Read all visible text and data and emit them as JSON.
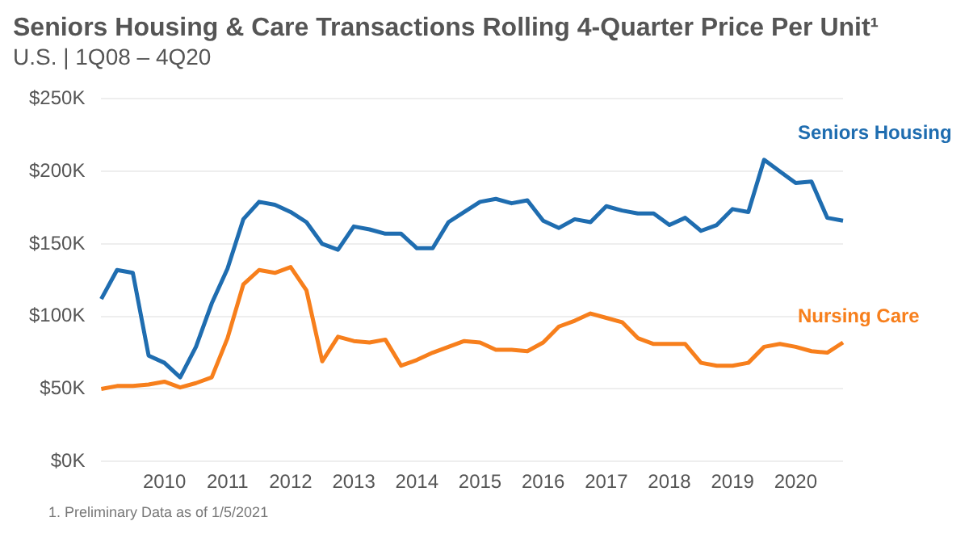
{
  "chart_data": {
    "type": "line",
    "title": "Seniors Housing & Care Transactions Rolling 4-Quarter Price Per Unit¹",
    "subtitle": "U.S. | 1Q08 – 4Q20",
    "categories": [
      null,
      null,
      null,
      null,
      "2010",
      null,
      null,
      null,
      "2011",
      null,
      null,
      null,
      "2012",
      null,
      null,
      null,
      "2013",
      null,
      null,
      null,
      "2014",
      null,
      null,
      null,
      "2015",
      null,
      null,
      null,
      "2016",
      null,
      null,
      null,
      "2017",
      null,
      null,
      null,
      "2018",
      null,
      null,
      null,
      "2019",
      null,
      null,
      null,
      "2020",
      null,
      null,
      null
    ],
    "series": [
      {
        "name": "Seniors Housing",
        "color": "#1f6db0",
        "values": [
          112,
          132,
          130,
          73,
          68,
          58,
          79,
          109,
          133,
          167,
          179,
          177,
          172,
          165,
          150,
          146,
          162,
          160,
          157,
          157,
          147,
          147,
          165,
          172,
          179,
          181,
          178,
          180,
          166,
          161,
          167,
          165,
          176,
          173,
          171,
          171,
          163,
          168,
          159,
          163,
          174,
          172,
          208,
          200,
          192,
          193,
          168,
          166
        ]
      },
      {
        "name": "Nursing Care",
        "color": "#f77f1c",
        "values": [
          50,
          52,
          52,
          53,
          55,
          51,
          54,
          58,
          85,
          122,
          132,
          130,
          134,
          118,
          69,
          86,
          83,
          82,
          84,
          66,
          70,
          75,
          79,
          83,
          82,
          77,
          77,
          76,
          82,
          93,
          97,
          102,
          99,
          96,
          85,
          81,
          81,
          81,
          68,
          66,
          66,
          68,
          79,
          81,
          79,
          76,
          75,
          82
        ]
      }
    ],
    "ylim": [
      0,
      250
    ],
    "yticks": [
      {
        "value": 0,
        "label": "$0K"
      },
      {
        "value": 50,
        "label": "$50K"
      },
      {
        "value": 100,
        "label": "$100K"
      },
      {
        "value": 150,
        "label": "$150K"
      },
      {
        "value": 200,
        "label": "$200K"
      },
      {
        "value": 250,
        "label": "$250K"
      }
    ],
    "grid": "y",
    "legend": false,
    "marker": "none",
    "line_style": "solid",
    "annotations": [
      "1. Preliminary Data as of 1/5/2021"
    ]
  }
}
